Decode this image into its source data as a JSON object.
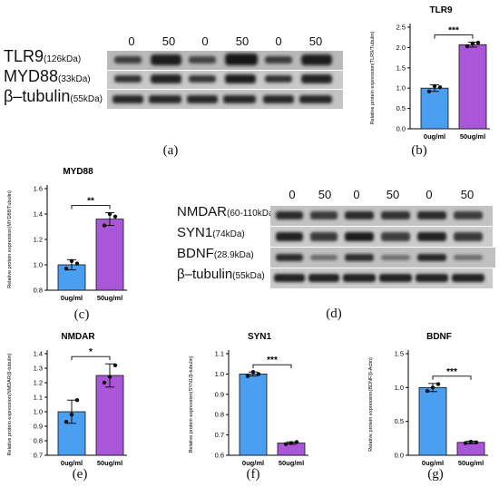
{
  "blot_a": {
    "lanes": [
      "0",
      "50",
      "0",
      "50",
      "0",
      "50"
    ],
    "rows": [
      {
        "name": "TLR9",
        "size": "(126kDa)"
      },
      {
        "name": "MYD88",
        "size": "(33kDa)"
      },
      {
        "name": "β–tubulin",
        "size": "(55kDa)"
      }
    ],
    "caption": "(a)"
  },
  "blot_d": {
    "lanes": [
      "0",
      "50",
      "0",
      "50",
      "0",
      "50"
    ],
    "rows": [
      {
        "name": "NMDAR",
        "size": "(60-110kDa)"
      },
      {
        "name": "SYN1",
        "size": "(74kDa)"
      },
      {
        "name": "BDNF",
        "size": "(28.9kDa)"
      },
      {
        "name": "β–tubulin",
        "size": "(55kDa)"
      }
    ],
    "caption": "(d)"
  },
  "chart_data": [
    {
      "id": "b",
      "type": "bar",
      "title": "TLR9",
      "ylabel": "Relative protein expression(TLR9/Tubulin)",
      "categories": [
        "0ug/ml",
        "50ug/ml"
      ],
      "values": [
        1.0,
        2.07
      ],
      "errors": [
        0.08,
        0.06
      ],
      "points": [
        [
          0.92,
          1.05,
          1.02
        ],
        [
          2.03,
          2.1,
          2.12
        ]
      ],
      "ylim": [
        0,
        2.5
      ],
      "yticks": [
        "0.0",
        "0.5",
        "1.0",
        "1.5",
        "2.0",
        "2.5"
      ],
      "significance": "***",
      "caption": "(b)",
      "colors": [
        "#4a9ff0",
        "#a957d8"
      ]
    },
    {
      "id": "c",
      "type": "bar",
      "title": "MYD88",
      "ylabel": "Relative protein expression(MYD88/Tubulin)",
      "categories": [
        "0ug/ml",
        "50ug/ml"
      ],
      "values": [
        1.0,
        1.36
      ],
      "errors": [
        0.04,
        0.05
      ],
      "points": [
        [
          0.97,
          1.03,
          1.01
        ],
        [
          1.31,
          1.4,
          1.38
        ]
      ],
      "ylim": [
        0.8,
        1.6
      ],
      "yticks": [
        "0.8",
        "1.0",
        "1.2",
        "1.4",
        "1.6"
      ],
      "significance": "**",
      "caption": "(c)",
      "colors": [
        "#4a9ff0",
        "#a957d8"
      ]
    },
    {
      "id": "e",
      "type": "bar",
      "title": "NMDAR",
      "ylabel": "Relative protein expression(NMDAR/β-tubulin)",
      "categories": [
        "0ug/ml",
        "50ug/ml"
      ],
      "values": [
        1.0,
        1.25
      ],
      "errors": [
        0.08,
        0.08
      ],
      "points": [
        [
          0.93,
          0.98,
          1.08
        ],
        [
          1.2,
          1.24,
          1.32
        ]
      ],
      "ylim": [
        0.7,
        1.4
      ],
      "yticks": [
        "0.7",
        "0.8",
        "0.9",
        "1.0",
        "1.1",
        "1.2",
        "1.3",
        "1.4"
      ],
      "significance": "*",
      "caption": "(e)",
      "colors": [
        "#4a9ff0",
        "#a957d8"
      ]
    },
    {
      "id": "f",
      "type": "bar",
      "title": "SYN1",
      "ylabel": "Relative protein expression(SYN1/β-tubulin)",
      "categories": [
        "0ug/ml",
        "50ug/ml"
      ],
      "values": [
        1.0,
        0.66
      ],
      "errors": [
        0.01,
        0.006
      ],
      "points": [
        [
          0.99,
          1.01,
          1.0
        ],
        [
          0.655,
          0.66,
          0.665
        ]
      ],
      "ylim": [
        0.6,
        1.1
      ],
      "yticks": [
        "0.6",
        "0.7",
        "0.8",
        "0.9",
        "1.0",
        "1.1"
      ],
      "significance": "***",
      "caption": "(f)",
      "colors": [
        "#4a9ff0",
        "#a957d8"
      ]
    },
    {
      "id": "g",
      "type": "bar",
      "title": "BDNF",
      "ylabel": "Relative protein expression(BDNF/β-Actin)",
      "categories": [
        "0ug/ml",
        "50ug/ml"
      ],
      "values": [
        1.0,
        0.19
      ],
      "errors": [
        0.06,
        0.02
      ],
      "points": [
        [
          0.95,
          1.0,
          1.05
        ],
        [
          0.18,
          0.2,
          0.19
        ]
      ],
      "ylim": [
        0,
        1.5
      ],
      "yticks": [
        "0.0",
        "0.5",
        "1.0",
        "1.5"
      ],
      "significance": "***",
      "caption": "(g)",
      "colors": [
        "#4a9ff0",
        "#a957d8"
      ]
    }
  ]
}
